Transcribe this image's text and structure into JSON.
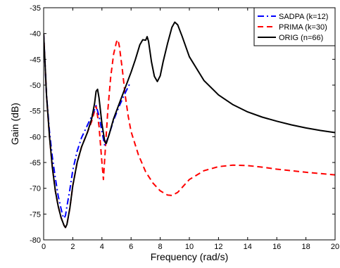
{
  "chart_data": {
    "type": "line",
    "title": "",
    "xlabel": "Frequency (rad/s)",
    "ylabel": "Gain (dB)",
    "xlim": [
      0,
      20
    ],
    "ylim": [
      -80,
      -35
    ],
    "xticks": [
      "0",
      "2",
      "4",
      "6",
      "8",
      "10",
      "12",
      "14",
      "16",
      "18",
      "20"
    ],
    "yticks": [
      "-35",
      "-40",
      "-45",
      "-50",
      "-55",
      "-60",
      "-65",
      "-70",
      "-75",
      "-80"
    ],
    "grid": false,
    "legend_position": "top-right",
    "series": [
      {
        "name": "SADPA (k=12)",
        "color": "#0000ff",
        "style": "dashdot",
        "x": [
          0,
          0.2,
          0.4,
          0.6,
          0.8,
          1.0,
          1.2,
          1.3,
          1.4,
          1.5,
          1.6,
          1.8,
          2.0,
          2.3,
          2.6,
          3.0,
          3.3,
          3.6,
          3.8,
          4.0,
          4.2,
          4.5,
          4.8,
          5.2,
          5.6,
          5.9
        ],
        "y": [
          -40,
          -52,
          -59,
          -64,
          -68,
          -71.5,
          -74,
          -75.2,
          -75.8,
          -75.3,
          -73.5,
          -70.2,
          -66.5,
          -62.8,
          -60.2,
          -57.8,
          -56,
          -54,
          -56,
          -59,
          -61.8,
          -59.5,
          -56.8,
          -54,
          -51.5,
          -49.8
        ]
      },
      {
        "name": "PRIMA (k=30)",
        "color": "#ff0000",
        "style": "dashed",
        "x": [
          0,
          0.2,
          0.4,
          0.6,
          0.8,
          1.0,
          1.2,
          1.4,
          1.5,
          1.6,
          1.8,
          2.0,
          2.3,
          2.6,
          3.0,
          3.3,
          3.6,
          3.8,
          4.0,
          4.1,
          4.2,
          4.4,
          4.6,
          4.8,
          5.0,
          5.1,
          5.2,
          5.4,
          5.6,
          5.8,
          6.0,
          6.5,
          7.0,
          7.5,
          8.0,
          8.5,
          8.8,
          9.2,
          10,
          11,
          12,
          13,
          14,
          15,
          16,
          18,
          20
        ],
        "y": [
          -40,
          -52,
          -60,
          -66,
          -70.5,
          -73.5,
          -75.7,
          -77.2,
          -77.6,
          -77,
          -73.8,
          -69.5,
          -65,
          -62,
          -59.2,
          -57,
          -54,
          -58,
          -65,
          -68.3,
          -64,
          -55,
          -48.5,
          -44,
          -41.6,
          -41.2,
          -42.5,
          -47,
          -52,
          -56,
          -59,
          -63.5,
          -66.8,
          -69,
          -70.5,
          -71.3,
          -71.4,
          -70.8,
          -68.3,
          -66.6,
          -65.8,
          -65.5,
          -65.6,
          -65.9,
          -66.3,
          -66.9,
          -67.4
        ]
      },
      {
        "name": "ORIG (n=66)",
        "color": "#000000",
        "style": "solid",
        "x": [
          0,
          0.2,
          0.4,
          0.6,
          0.8,
          1.0,
          1.2,
          1.4,
          1.5,
          1.6,
          1.8,
          2.0,
          2.3,
          2.6,
          3.0,
          3.3,
          3.5,
          3.6,
          3.7,
          3.8,
          4.0,
          4.2,
          4.3,
          4.5,
          4.8,
          5.2,
          5.6,
          6.0,
          6.3,
          6.6,
          6.8,
          7.0,
          7.1,
          7.2,
          7.4,
          7.6,
          7.8,
          8.0,
          8.2,
          8.5,
          8.8,
          9.0,
          9.2,
          9.5,
          10,
          11,
          12,
          13,
          14,
          15,
          16,
          17,
          18,
          19,
          20
        ],
        "y": [
          -40,
          -52,
          -60,
          -66,
          -70.5,
          -73.5,
          -75.7,
          -77.2,
          -77.6,
          -77,
          -73.8,
          -69.5,
          -65,
          -62,
          -59.2,
          -56.5,
          -53.5,
          -51.2,
          -50.8,
          -52.5,
          -57.5,
          -61,
          -61.3,
          -59.5,
          -56.5,
          -53.5,
          -50.5,
          -47.5,
          -45,
          -42.2,
          -41.2,
          -41.3,
          -40.6,
          -41.5,
          -45.5,
          -48.3,
          -49.3,
          -48.2,
          -45.5,
          -42,
          -38.8,
          -37.8,
          -38.3,
          -40.5,
          -44.5,
          -49.1,
          -51.9,
          -53.8,
          -55.2,
          -56.2,
          -57,
          -57.7,
          -58.3,
          -58.8,
          -59.2
        ]
      }
    ]
  }
}
